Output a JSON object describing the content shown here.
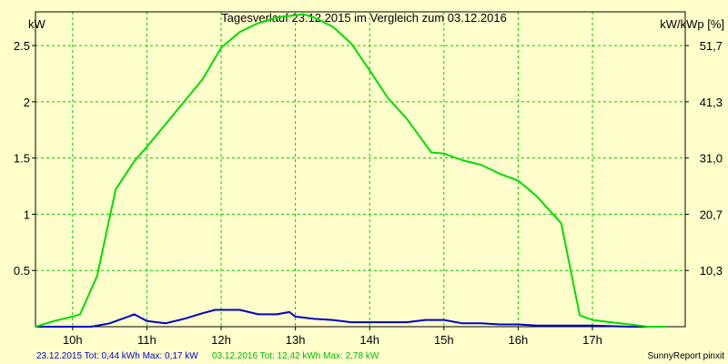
{
  "chart_data": {
    "type": "line",
    "title": "Tagesverlauf 23.12.2015 im Vergleich zum 03.12.2016",
    "ylabel_left": "kW",
    "ylabel_right": "kW/kWp [%]",
    "xlim": [
      9.5,
      18.25
    ],
    "ylim": [
      0,
      2.8
    ],
    "x_ticks": [
      {
        "value": 10,
        "label": "10h"
      },
      {
        "value": 11,
        "label": "11h"
      },
      {
        "value": 12,
        "label": "12h"
      },
      {
        "value": 13,
        "label": "13h"
      },
      {
        "value": 14,
        "label": "14h"
      },
      {
        "value": 15,
        "label": "15h"
      },
      {
        "value": 16,
        "label": "16h"
      },
      {
        "value": 17,
        "label": "17h"
      }
    ],
    "y_ticks_left": [
      {
        "value": 0.5,
        "label": "0.5"
      },
      {
        "value": 1,
        "label": "1"
      },
      {
        "value": 1.5,
        "label": "1.5"
      },
      {
        "value": 2,
        "label": "2"
      },
      {
        "value": 2.5,
        "label": "2.5"
      }
    ],
    "y_ticks_right": [
      {
        "value": 0.5,
        "label": "10,3"
      },
      {
        "value": 1,
        "label": "20,7"
      },
      {
        "value": 1.5,
        "label": "31,0"
      },
      {
        "value": 2,
        "label": "41,3"
      },
      {
        "value": 2.5,
        "label": "51,7"
      }
    ],
    "grid": true,
    "series": [
      {
        "color": "#0000cc",
        "x": [
          9.5,
          9.75,
          10.0,
          10.25,
          10.5,
          10.75,
          10.83,
          11.0,
          11.25,
          11.5,
          11.75,
          11.92,
          12.0,
          12.25,
          12.5,
          12.75,
          12.92,
          13.0,
          13.25,
          13.5,
          13.75,
          14.0,
          14.25,
          14.5,
          14.75,
          15.0,
          15.25,
          15.5,
          15.75,
          16.0,
          16.25,
          16.5,
          16.75,
          17.0,
          17.5,
          18.0
        ],
        "y": [
          0,
          0,
          0,
          0,
          0.03,
          0.09,
          0.11,
          0.05,
          0.03,
          0.07,
          0.12,
          0.15,
          0.15,
          0.15,
          0.11,
          0.11,
          0.13,
          0.09,
          0.07,
          0.06,
          0.04,
          0.04,
          0.04,
          0.04,
          0.06,
          0.06,
          0.03,
          0.03,
          0.02,
          0.02,
          0.01,
          0.01,
          0.01,
          0.01,
          0,
          0
        ]
      },
      {
        "color": "#00dd00",
        "x": [
          9.5,
          9.75,
          10.0,
          10.1,
          10.33,
          10.58,
          10.83,
          11.0,
          11.25,
          11.5,
          11.75,
          12.0,
          12.25,
          12.5,
          12.75,
          13.0,
          13.1,
          13.25,
          13.5,
          13.75,
          14.0,
          14.25,
          14.5,
          14.83,
          15.0,
          15.25,
          15.5,
          15.75,
          16.0,
          16.25,
          16.58,
          16.83,
          17.0,
          17.25,
          17.5,
          17.75,
          18.0
        ],
        "y": [
          0,
          0.05,
          0.09,
          0.11,
          0.45,
          1.22,
          1.47,
          1.6,
          1.8,
          2.0,
          2.2,
          2.48,
          2.62,
          2.7,
          2.75,
          2.77,
          2.78,
          2.75,
          2.67,
          2.52,
          2.28,
          2.03,
          1.85,
          1.55,
          1.54,
          1.48,
          1.44,
          1.36,
          1.3,
          1.16,
          0.92,
          0.1,
          0.06,
          0.04,
          0.02,
          0,
          0
        ]
      }
    ]
  },
  "footer": {
    "legend_blue": "23.12.2015 Tot: 0,44 kWh Max: 0,17 kW",
    "legend_green": "03.12.2016 Tot: 12,42 kWh Max: 2,78 kW",
    "credit": "SunnyReport pinxit"
  },
  "colors": {
    "background": "#ffffcc",
    "grid": "#00cc00",
    "axis": "#000000"
  }
}
